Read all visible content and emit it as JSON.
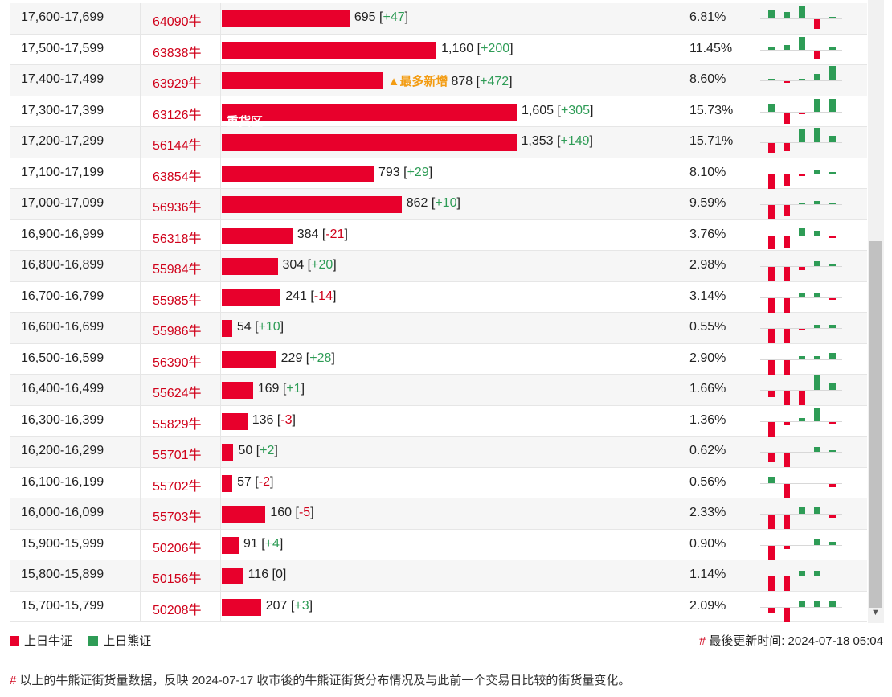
{
  "colors": {
    "bull": "#e8002c",
    "bear": "#2e9c56",
    "code": "#d0021b",
    "tag": "#f39c12"
  },
  "rows": [
    {
      "range": "17,600-17,699",
      "code": "64090牛",
      "value": "695",
      "change": "+47",
      "pct": "6.81%",
      "share": 6.81,
      "spark": [
        5,
        4,
        8,
        -6,
        1
      ]
    },
    {
      "range": "17,500-17,599",
      "code": "63838牛",
      "value": "1,160",
      "change": "+200",
      "pct": "11.45%",
      "share": 11.45,
      "spark": [
        2,
        3,
        8,
        -5,
        2
      ]
    },
    {
      "range": "17,400-17,499",
      "code": "63929牛",
      "value": "878",
      "change": "+472",
      "pct": "8.60%",
      "share": 8.6,
      "tag": "▲最多新增",
      "spark": [
        1,
        -1,
        1,
        4,
        9
      ]
    },
    {
      "range": "17,300-17,399",
      "code": "63126牛",
      "value": "1,605",
      "change": "+305",
      "pct": "15.73%",
      "share": 15.73,
      "label": "重货区",
      "spark": [
        5,
        -7,
        -1,
        8,
        8
      ]
    },
    {
      "range": "17,200-17,299",
      "code": "56144牛",
      "value": "1,353",
      "change": "+149",
      "pct": "15.71%",
      "share": 15.71,
      "spark": [
        -6,
        -5,
        8,
        9,
        4
      ]
    },
    {
      "range": "17,100-17,199",
      "code": "63854牛",
      "value": "793",
      "change": "+29",
      "pct": "8.10%",
      "share": 8.1,
      "spark": [
        -9,
        -7,
        -1,
        2,
        1
      ]
    },
    {
      "range": "17,000-17,099",
      "code": "56936牛",
      "value": "862",
      "change": "+10",
      "pct": "9.59%",
      "share": 9.59,
      "spark": [
        -9,
        -7,
        1,
        2,
        1
      ]
    },
    {
      "range": "16,900-16,999",
      "code": "56318牛",
      "value": "384",
      "change": "-21",
      "pct": "3.76%",
      "share": 3.76,
      "spark": [
        -8,
        -7,
        5,
        3,
        -1
      ]
    },
    {
      "range": "16,800-16,899",
      "code": "55984牛",
      "value": "304",
      "change": "+20",
      "pct": "2.98%",
      "share": 2.98,
      "spark": [
        -9,
        -9,
        -2,
        3,
        1
      ]
    },
    {
      "range": "16,700-16,799",
      "code": "55985牛",
      "value": "241",
      "change": "-14",
      "pct": "3.14%",
      "share": 3.14,
      "spark": [
        -9,
        -9,
        3,
        3,
        -1
      ]
    },
    {
      "range": "16,600-16,699",
      "code": "55986牛",
      "value": "54",
      "change": "+10",
      "pct": "0.55%",
      "share": 0.55,
      "spark": [
        -9,
        -9,
        -1,
        2,
        2
      ]
    },
    {
      "range": "16,500-16,599",
      "code": "56390牛",
      "value": "229",
      "change": "+28",
      "pct": "2.90%",
      "share": 2.9,
      "spark": [
        -9,
        -9,
        2,
        2,
        4
      ]
    },
    {
      "range": "16,400-16,499",
      "code": "55624牛",
      "value": "169",
      "change": "+1",
      "pct": "1.66%",
      "share": 1.66,
      "spark": [
        -4,
        -9,
        -9,
        9,
        4
      ]
    },
    {
      "range": "16,300-16,399",
      "code": "55829牛",
      "value": "136",
      "change": "-3",
      "pct": "1.36%",
      "share": 1.36,
      "spark": [
        -9,
        -2,
        2,
        8,
        -1
      ]
    },
    {
      "range": "16,200-16,299",
      "code": "55701牛",
      "value": "50",
      "change": "+2",
      "pct": "0.62%",
      "share": 0.62,
      "spark": [
        -6,
        -9,
        0,
        3,
        1
      ]
    },
    {
      "range": "16,100-16,199",
      "code": "55702牛",
      "value": "57",
      "change": "-2",
      "pct": "0.56%",
      "share": 0.56,
      "spark": [
        4,
        -9,
        0,
        0,
        -2
      ]
    },
    {
      "range": "16,000-16,099",
      "code": "55703牛",
      "value": "160",
      "change": "-5",
      "pct": "2.33%",
      "share": 2.33,
      "spark": [
        -9,
        -9,
        4,
        4,
        -2
      ]
    },
    {
      "range": "15,900-15,999",
      "code": "50206牛",
      "value": "91",
      "change": "+4",
      "pct": "0.90%",
      "share": 0.9,
      "spark": [
        -9,
        -2,
        0,
        4,
        2
      ]
    },
    {
      "range": "15,800-15,899",
      "code": "50156牛",
      "value": "116",
      "change": "0",
      "pct": "1.14%",
      "share": 1.14,
      "spark": [
        -9,
        -9,
        3,
        3,
        0
      ]
    },
    {
      "range": "15,700-15,799",
      "code": "50208牛",
      "value": "207",
      "change": "+3",
      "pct": "2.09%",
      "share": 2.09,
      "spark": [
        -3,
        -9,
        4,
        4,
        4
      ]
    }
  ],
  "legend": {
    "bull": "上日牛证",
    "bear": "上日熊证"
  },
  "updated": "最後更新时间: 2024-07-18 05:04",
  "note": "以上的牛熊证街货量数据，反映 2024-07-17 收市後的牛熊证街货分布情况及与此前一个交易日比较的街货量变化。",
  "hash": "#"
}
